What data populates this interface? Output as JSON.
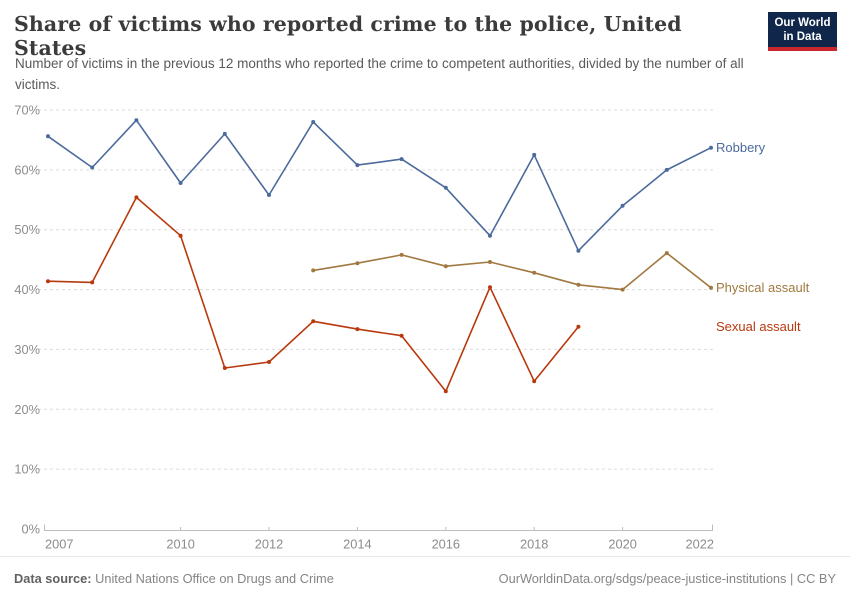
{
  "header": {
    "title": "Share of victims who reported crime to the police, United States",
    "subtitle": "Number of victims in the previous 12 months who reported the crime to competent authorities, divided by the number of all victims.",
    "logo": {
      "line1": "Our World",
      "line2": "in Data"
    }
  },
  "chart_data": {
    "type": "line",
    "title": "Share of victims who reported crime to the police, United States",
    "xlabel": "",
    "ylabel": "",
    "xlim": [
      2007,
      2022
    ],
    "ylim": [
      0,
      70
    ],
    "grid": "horizontal-dashed",
    "legend_position": "right-end-labels",
    "yticks": [
      {
        "v": 0,
        "label": "0%"
      },
      {
        "v": 10,
        "label": "10%"
      },
      {
        "v": 20,
        "label": "20%"
      },
      {
        "v": 30,
        "label": "30%"
      },
      {
        "v": 40,
        "label": "40%"
      },
      {
        "v": 50,
        "label": "50%"
      },
      {
        "v": 60,
        "label": "60%"
      },
      {
        "v": 70,
        "label": "70%"
      }
    ],
    "xticks": [
      {
        "v": 2007,
        "label": "2007"
      },
      {
        "v": 2010,
        "label": "2010"
      },
      {
        "v": 2012,
        "label": "2012"
      },
      {
        "v": 2014,
        "label": "2014"
      },
      {
        "v": 2016,
        "label": "2016"
      },
      {
        "v": 2018,
        "label": "2018"
      },
      {
        "v": 2020,
        "label": "2020"
      },
      {
        "v": 2022,
        "label": "2022"
      }
    ],
    "series": [
      {
        "name": "Robbery",
        "color": "#4c6a9c",
        "years": [
          2007,
          2008,
          2009,
          2010,
          2011,
          2012,
          2013,
          2014,
          2015,
          2016,
          2017,
          2018,
          2019,
          2020,
          2021,
          2022
        ],
        "values": [
          65.6,
          60.4,
          68.3,
          57.8,
          66.0,
          55.8,
          68.0,
          60.8,
          61.8,
          57.0,
          49.0,
          62.5,
          46.5,
          54.0,
          60.0,
          63.7
        ]
      },
      {
        "name": "Physical assault",
        "color": "#a1783f",
        "years": [
          2013,
          2014,
          2015,
          2016,
          2017,
          2018,
          2019,
          2020,
          2021,
          2022
        ],
        "values": [
          43.2,
          44.4,
          45.8,
          43.9,
          44.6,
          42.8,
          40.8,
          40.0,
          46.1,
          40.3
        ]
      },
      {
        "name": "Sexual assault",
        "color": "#b8390e",
        "years": [
          2007,
          2008,
          2009,
          2010,
          2011,
          2012,
          2013,
          2014,
          2015,
          2016,
          2017,
          2018,
          2019
        ],
        "values": [
          41.4,
          41.2,
          55.4,
          49.0,
          26.9,
          27.9,
          34.7,
          33.4,
          32.3,
          23.0,
          40.4,
          24.7,
          33.8
        ]
      }
    ]
  },
  "footer": {
    "source_label": "Data source:",
    "source_text": " United Nations Office on Drugs and Crime",
    "credit": "OurWorldinData.org/sdgs/peace-justice-institutions | CC BY"
  },
  "colors": {
    "title_text": "#3b3b3b",
    "subtitle_text": "#5a5a5a",
    "axis_text": "#8c8c8c",
    "gridline": "#dcdcdc",
    "axis_line": "#bdbdbd",
    "logo_bg": "#10264a",
    "logo_accent": "#c8282d"
  }
}
